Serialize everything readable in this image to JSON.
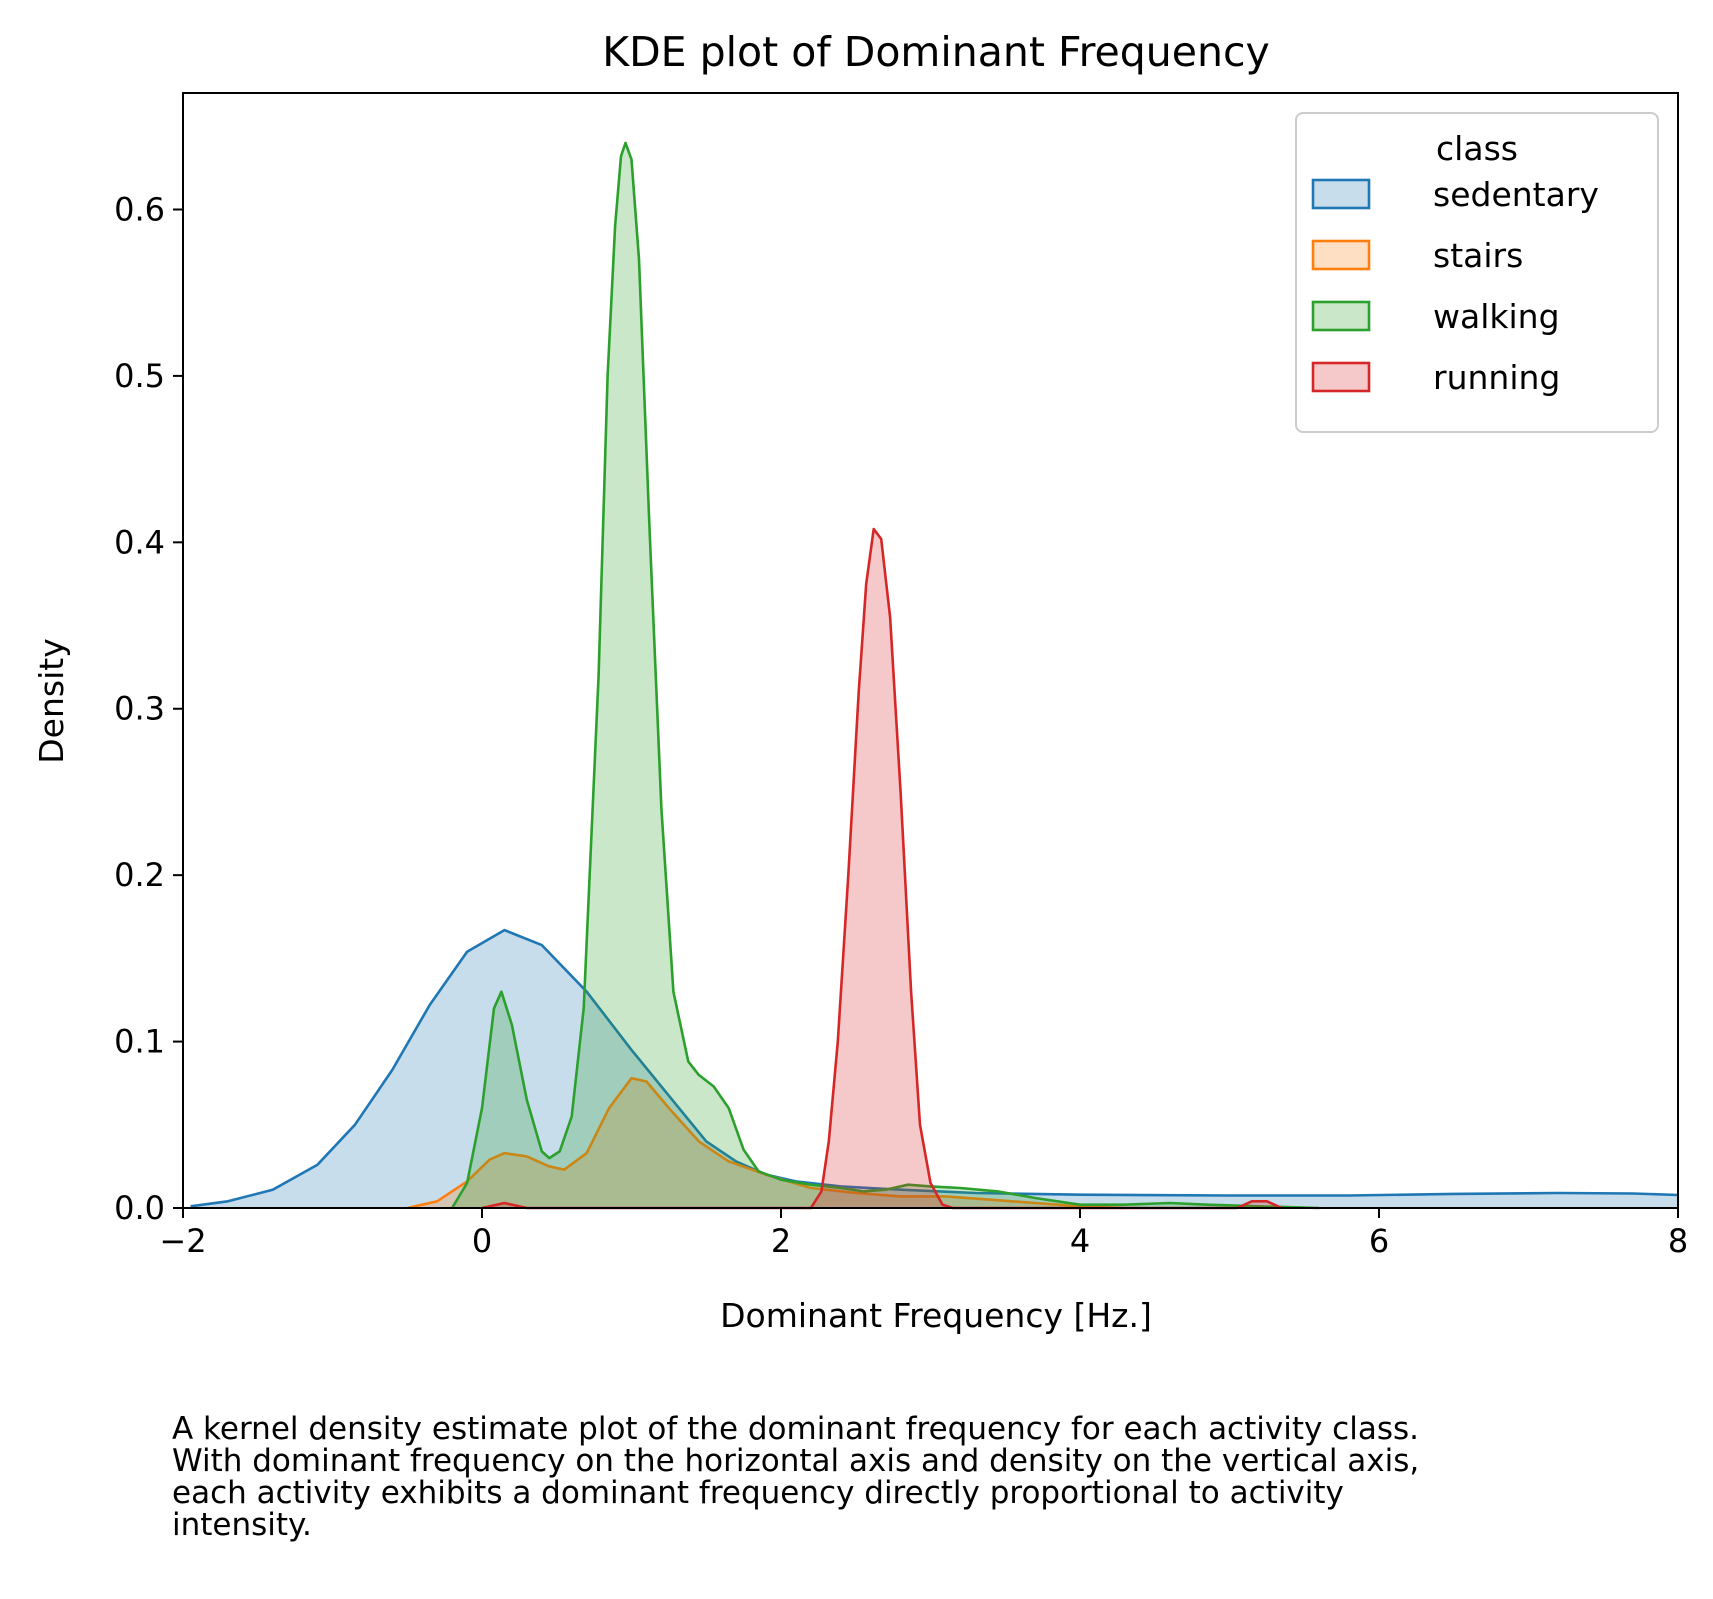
{
  "chart_data": {
    "type": "area",
    "title": "KDE plot of Dominant Frequency",
    "xlabel": "Dominant Frequency [Hz.]",
    "ylabel": "Density",
    "xlim": [
      -2,
      8
    ],
    "ylim": [
      0,
      0.67
    ],
    "xticks": [
      -2,
      0,
      2,
      4,
      6,
      8
    ],
    "xtick_labels": [
      "−2",
      "0",
      "2",
      "4",
      "6",
      "8"
    ],
    "yticks": [
      0.0,
      0.1,
      0.2,
      0.3,
      0.4,
      0.5,
      0.6
    ],
    "ytick_labels": [
      "0.0",
      "0.1",
      "0.2",
      "0.3",
      "0.4",
      "0.5",
      "0.6"
    ],
    "grid": false,
    "legend": {
      "title": "class",
      "placement": "top-right"
    },
    "series": [
      {
        "name": "sedentary",
        "color": "#1f77b4",
        "points": [
          [
            -1.95,
            0.001
          ],
          [
            -1.7,
            0.004
          ],
          [
            -1.4,
            0.011
          ],
          [
            -1.1,
            0.026
          ],
          [
            -0.85,
            0.05
          ],
          [
            -0.6,
            0.083
          ],
          [
            -0.35,
            0.122
          ],
          [
            -0.1,
            0.154
          ],
          [
            0.15,
            0.167
          ],
          [
            0.4,
            0.158
          ],
          [
            0.7,
            0.13
          ],
          [
            1.0,
            0.095
          ],
          [
            1.3,
            0.062
          ],
          [
            1.5,
            0.04
          ],
          [
            1.7,
            0.028
          ],
          [
            1.9,
            0.02
          ],
          [
            2.1,
            0.016
          ],
          [
            2.4,
            0.013
          ],
          [
            2.8,
            0.011
          ],
          [
            3.3,
            0.009
          ],
          [
            4.0,
            0.008
          ],
          [
            5.0,
            0.0075
          ],
          [
            5.8,
            0.0075
          ],
          [
            6.5,
            0.0085
          ],
          [
            7.2,
            0.009
          ],
          [
            7.7,
            0.0087
          ],
          [
            8.0,
            0.0078
          ]
        ]
      },
      {
        "name": "stairs",
        "color": "#ff7f0e",
        "points": [
          [
            -0.5,
            0.0
          ],
          [
            -0.3,
            0.004
          ],
          [
            -0.1,
            0.016
          ],
          [
            0.05,
            0.029
          ],
          [
            0.15,
            0.033
          ],
          [
            0.3,
            0.031
          ],
          [
            0.45,
            0.025
          ],
          [
            0.55,
            0.023
          ],
          [
            0.7,
            0.033
          ],
          [
            0.85,
            0.06
          ],
          [
            1.0,
            0.078
          ],
          [
            1.1,
            0.076
          ],
          [
            1.25,
            0.06
          ],
          [
            1.45,
            0.04
          ],
          [
            1.65,
            0.028
          ],
          [
            1.9,
            0.02
          ],
          [
            2.2,
            0.012
          ],
          [
            2.5,
            0.009
          ],
          [
            2.8,
            0.007
          ],
          [
            3.1,
            0.007
          ],
          [
            3.4,
            0.005
          ],
          [
            3.7,
            0.003
          ],
          [
            4.0,
            0.001
          ],
          [
            4.3,
            0.0
          ]
        ]
      },
      {
        "name": "walking",
        "color": "#2ca02c",
        "points": [
          [
            -0.2,
            0.0
          ],
          [
            -0.1,
            0.015
          ],
          [
            0.0,
            0.06
          ],
          [
            0.08,
            0.12
          ],
          [
            0.13,
            0.13
          ],
          [
            0.2,
            0.11
          ],
          [
            0.3,
            0.065
          ],
          [
            0.4,
            0.034
          ],
          [
            0.45,
            0.03
          ],
          [
            0.52,
            0.034
          ],
          [
            0.6,
            0.055
          ],
          [
            0.68,
            0.12
          ],
          [
            0.78,
            0.32
          ],
          [
            0.84,
            0.5
          ],
          [
            0.89,
            0.59
          ],
          [
            0.93,
            0.632
          ],
          [
            0.96,
            0.64
          ],
          [
            1.0,
            0.63
          ],
          [
            1.05,
            0.57
          ],
          [
            1.12,
            0.41
          ],
          [
            1.2,
            0.24
          ],
          [
            1.28,
            0.13
          ],
          [
            1.38,
            0.088
          ],
          [
            1.45,
            0.08
          ],
          [
            1.55,
            0.073
          ],
          [
            1.65,
            0.06
          ],
          [
            1.75,
            0.035
          ],
          [
            1.85,
            0.022
          ],
          [
            2.0,
            0.017
          ],
          [
            2.2,
            0.014
          ],
          [
            2.4,
            0.012
          ],
          [
            2.55,
            0.01
          ],
          [
            2.7,
            0.011
          ],
          [
            2.85,
            0.014
          ],
          [
            3.0,
            0.013
          ],
          [
            3.2,
            0.012
          ],
          [
            3.45,
            0.01
          ],
          [
            3.7,
            0.006
          ],
          [
            4.0,
            0.002
          ],
          [
            4.3,
            0.002
          ],
          [
            4.6,
            0.003
          ],
          [
            4.85,
            0.002
          ],
          [
            5.2,
            0.001
          ],
          [
            5.6,
            0.0
          ]
        ]
      },
      {
        "name": "running",
        "color": "#d62728",
        "points": [
          [
            0.0,
            0.0
          ],
          [
            0.15,
            0.003
          ],
          [
            0.3,
            0.0
          ],
          [
            2.2,
            0.0
          ],
          [
            2.27,
            0.01
          ],
          [
            2.32,
            0.04
          ],
          [
            2.38,
            0.1
          ],
          [
            2.45,
            0.2
          ],
          [
            2.52,
            0.31
          ],
          [
            2.57,
            0.375
          ],
          [
            2.62,
            0.408
          ],
          [
            2.67,
            0.402
          ],
          [
            2.73,
            0.355
          ],
          [
            2.8,
            0.25
          ],
          [
            2.87,
            0.13
          ],
          [
            2.93,
            0.05
          ],
          [
            3.0,
            0.015
          ],
          [
            3.08,
            0.002
          ],
          [
            3.15,
            0.0
          ],
          [
            5.05,
            0.0
          ],
          [
            5.15,
            0.004
          ],
          [
            5.25,
            0.004
          ],
          [
            5.35,
            0.0
          ]
        ]
      }
    ]
  },
  "caption": {
    "lines": [
      "A kernel density estimate plot of the dominant frequency for each activity class.",
      "With dominant frequency on the horizontal axis and density on the vertical axis,",
      "each activity exhibits a dominant frequency directly proportional to activity",
      "intensity."
    ]
  }
}
